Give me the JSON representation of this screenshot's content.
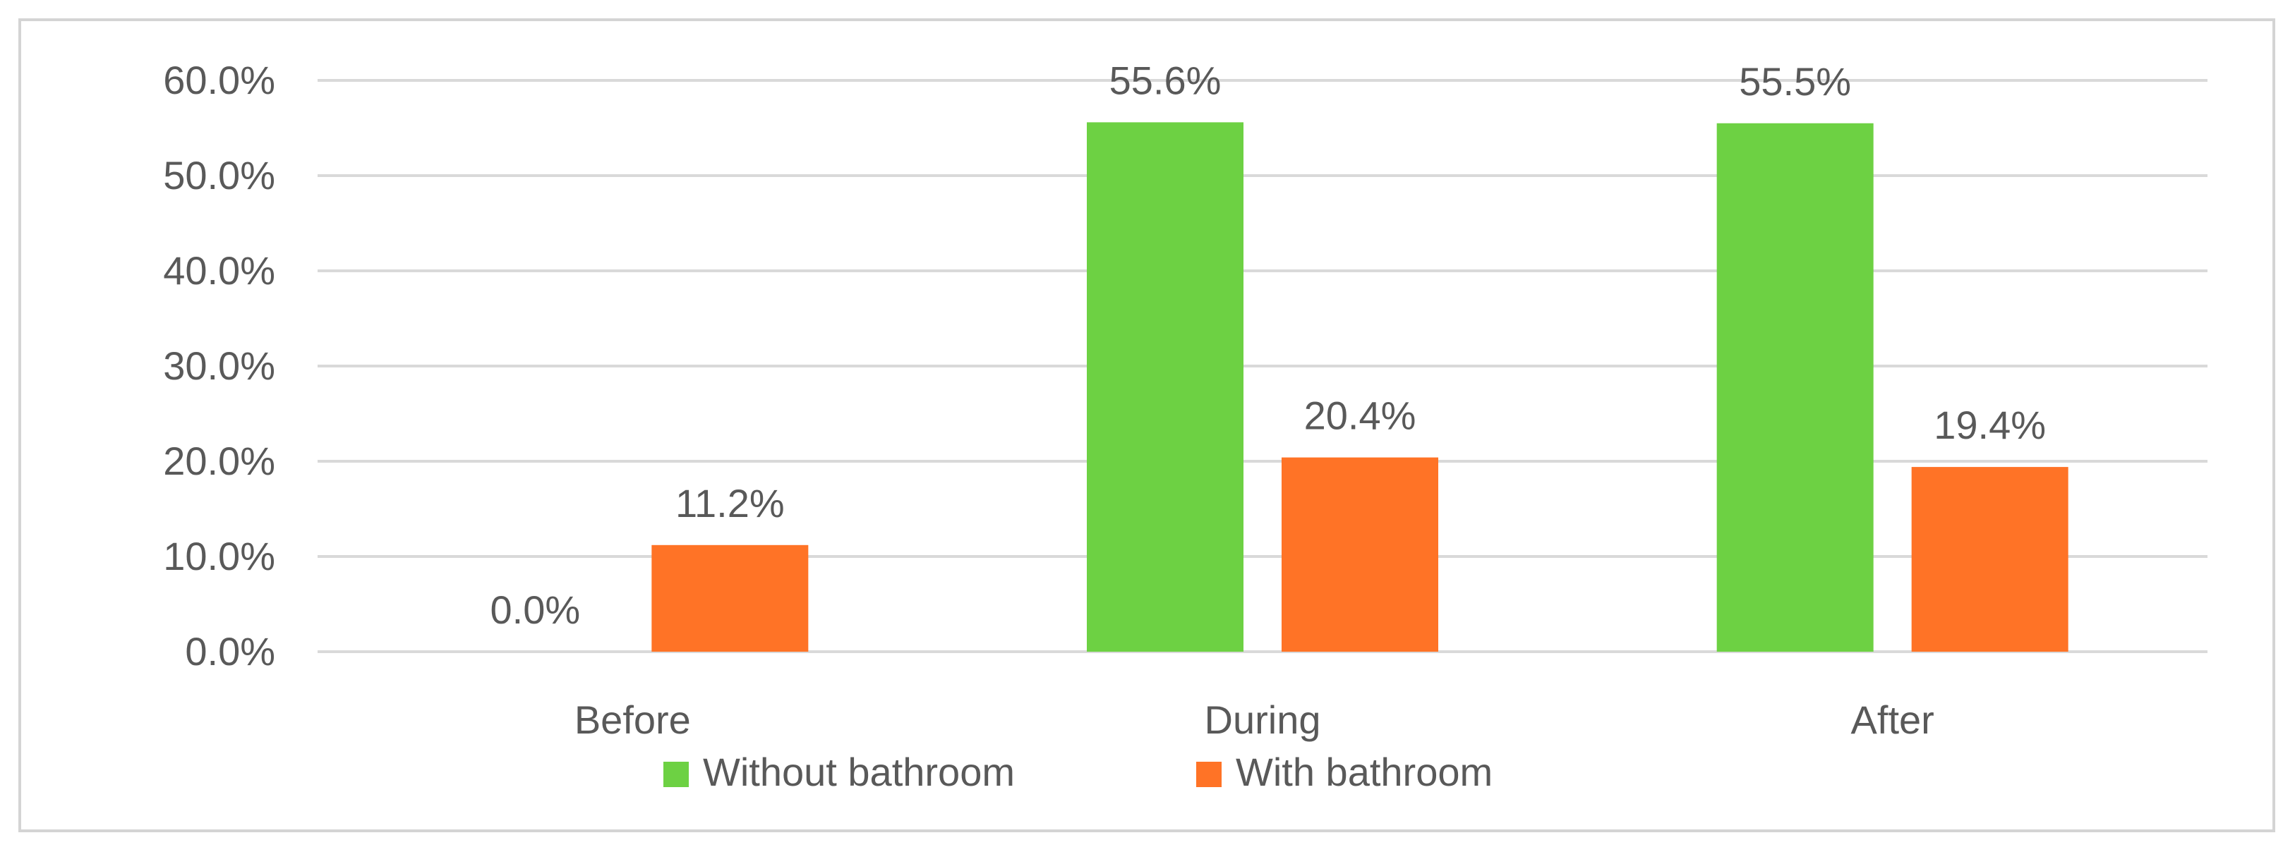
{
  "chart_data": {
    "type": "bar",
    "categories": [
      "Before",
      "During",
      "After"
    ],
    "series": [
      {
        "name": "Without bathroom",
        "color": "#6dd143",
        "values": [
          0.0,
          55.6,
          55.5
        ],
        "labels": [
          "0.0%",
          "55.6%",
          "55.5%"
        ]
      },
      {
        "name": "With bathroom",
        "color": "#ff7326",
        "values": [
          11.2,
          20.4,
          19.4
        ],
        "labels": [
          "11.2%",
          "20.4%",
          "19.4%"
        ]
      }
    ],
    "y_ticks": [
      0,
      10,
      20,
      30,
      40,
      50,
      60
    ],
    "y_tick_labels": [
      "0.0%",
      "10.0%",
      "20.0%",
      "30.0%",
      "40.0%",
      "50.0%",
      "60.0%"
    ],
    "ylim": [
      0,
      60
    ],
    "grid": true,
    "legend_position": "bottom",
    "title": "",
    "xlabel": "",
    "ylabel": ""
  }
}
